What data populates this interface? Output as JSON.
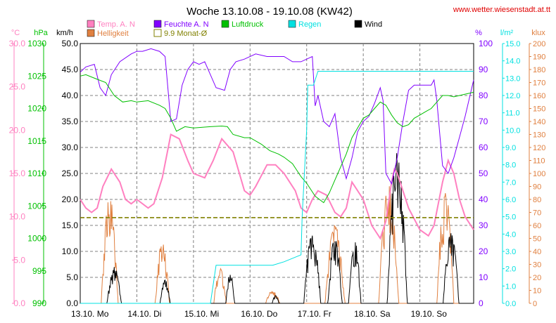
{
  "chart_data": {
    "type": "line",
    "title": "Woche 13.10.08 - 19.10.08 (KW42)",
    "watermark": "www.wetter.wiesenstadt.at.tt",
    "x_tick_labels": [
      "13.10. Mo",
      "14.10. Di",
      "15.10. Mi",
      "16.10. Do",
      "17.10. Fr",
      "18.10. Sa",
      "19.10. So"
    ],
    "x_range_days": [
      0,
      6.95
    ],
    "grid": true,
    "legend_placement": "top",
    "axes": [
      {
        "id": "temp",
        "label": "°C",
        "side": "left",
        "min": 0,
        "max": 30,
        "ticks": [
          "0.0",
          "5.0",
          "10.0",
          "15.0",
          "20.0",
          "25.0",
          "30.0"
        ],
        "color": "#ff80c0"
      },
      {
        "id": "press",
        "label": "hPa",
        "side": "left",
        "min": 990,
        "max": 1030,
        "ticks": [
          "990",
          "995",
          "1000",
          "1005",
          "1010",
          "1015",
          "1020",
          "1025",
          "1030"
        ],
        "color": "#00c000"
      },
      {
        "id": "wind",
        "label": "km/h",
        "side": "left",
        "min": 0,
        "max": 50,
        "ticks": [
          "0.0",
          "5.0",
          "10.0",
          "15.0",
          "20.0",
          "25.0",
          "30.0",
          "35.0",
          "40.0",
          "45.0",
          "50.0"
        ],
        "color": "#000000"
      },
      {
        "id": "hum",
        "label": "%",
        "side": "right",
        "min": 0,
        "max": 100,
        "ticks": [
          "0",
          "10",
          "20",
          "30",
          "40",
          "50",
          "60",
          "70",
          "80",
          "90",
          "100"
        ],
        "color": "#8000ff"
      },
      {
        "id": "rain",
        "label": "l/m²",
        "side": "right",
        "min": 0,
        "max": 15,
        "ticks": [
          "0.0",
          "1.0",
          "2.0",
          "3.0",
          "4.0",
          "5.0",
          "6.0",
          "7.0",
          "8.0",
          "9.0",
          "10.0",
          "11.0",
          "12.0",
          "13.0",
          "14.0",
          "15.0"
        ],
        "color": "#00e0e0"
      },
      {
        "id": "lux",
        "label": "klux",
        "side": "right",
        "min": 0,
        "max": 200,
        "ticks": [
          "0",
          "10",
          "20",
          "30",
          "40",
          "50",
          "60",
          "70",
          "80",
          "90",
          "100",
          "110",
          "120",
          "130",
          "140",
          "150",
          "160",
          "170",
          "180",
          "190",
          "200"
        ],
        "color": "#e08040"
      }
    ],
    "legend": [
      {
        "name": "Temp. A. N",
        "color": "#ff80c0",
        "style": "box"
      },
      {
        "name": "Feuchte A. N",
        "color": "#8000ff",
        "style": "box"
      },
      {
        "name": "Luftdruck",
        "color": "#00c000",
        "style": "box"
      },
      {
        "name": "Regen",
        "color": "#00e0e0",
        "style": "box"
      },
      {
        "name": "Wind",
        "color": "#000000",
        "style": "box"
      },
      {
        "name": "Helligkeit",
        "color": "#e08040",
        "style": "box"
      },
      {
        "name": "9.9 Monat-Ø",
        "color": "#808000",
        "style": "outline"
      }
    ],
    "series": [
      {
        "name": "Temp. A. N",
        "axis": "temp",
        "color": "#ff80c0",
        "width": 2,
        "x": [
          0,
          0.1,
          0.2,
          0.3,
          0.4,
          0.55,
          0.7,
          0.8,
          0.9,
          1.0,
          1.2,
          1.3,
          1.45,
          1.6,
          1.75,
          1.9,
          2.0,
          2.2,
          2.35,
          2.5,
          2.7,
          2.9,
          3.0,
          3.1,
          3.3,
          3.45,
          3.6,
          3.8,
          3.9,
          4.0,
          4.1,
          4.2,
          4.35,
          4.5,
          4.6,
          4.7,
          4.8,
          5.0,
          5.15,
          5.3,
          5.4,
          5.5,
          5.55,
          5.6,
          5.7,
          5.8,
          6.0,
          6.15,
          6.25,
          6.4,
          6.5,
          6.6,
          6.7,
          6.8,
          6.95
        ],
        "y": [
          12.0,
          11.0,
          10.5,
          11.0,
          13.5,
          15.5,
          14.0,
          12.0,
          11.5,
          12.0,
          11.0,
          11.5,
          14.5,
          19.5,
          19.0,
          16.5,
          15.0,
          14.5,
          16.5,
          19.0,
          17.5,
          13.0,
          12.5,
          13.5,
          16.0,
          16.0,
          15.0,
          13.0,
          11.0,
          10.5,
          12.0,
          13.0,
          12.5,
          10.5,
          10.0,
          11.0,
          14.0,
          12.0,
          9.0,
          7.5,
          9.5,
          14.0,
          15.5,
          15.0,
          13.0,
          11.0,
          8.5,
          7.8,
          9.0,
          14.0,
          16.5,
          15.0,
          12.0,
          10.0,
          8.5
        ]
      },
      {
        "name": "Feuchte A. N",
        "axis": "hum",
        "color": "#8000ff",
        "width": 1,
        "x": [
          0,
          0.1,
          0.25,
          0.35,
          0.45,
          0.55,
          0.7,
          0.9,
          1.0,
          1.1,
          1.25,
          1.4,
          1.5,
          1.6,
          1.7,
          1.8,
          1.9,
          2.0,
          2.1,
          2.2,
          2.4,
          2.55,
          2.65,
          2.75,
          2.9,
          3.1,
          3.3,
          3.5,
          3.6,
          3.75,
          3.9,
          4.0,
          4.1,
          4.15,
          4.2,
          4.3,
          4.4,
          4.5,
          4.6,
          4.7,
          4.8,
          4.9,
          5.0,
          5.1,
          5.2,
          5.3,
          5.35,
          5.4,
          5.5,
          5.6,
          5.7,
          5.8,
          5.9,
          6.0,
          6.1,
          6.2,
          6.25,
          6.3,
          6.4,
          6.5,
          6.6,
          6.7,
          6.8,
          6.95
        ],
        "y": [
          89,
          91,
          92,
          83,
          80,
          88,
          93,
          96,
          97,
          97,
          98,
          97,
          95,
          70,
          71,
          84,
          90,
          93,
          92,
          93,
          83,
          82,
          90,
          93,
          94,
          96,
          95,
          95,
          95,
          93,
          93,
          94,
          95,
          76,
          80,
          70,
          68,
          73,
          56,
          48,
          56,
          66,
          70,
          72,
          77,
          83,
          78,
          50,
          46,
          56,
          70,
          82,
          84,
          84,
          84,
          84,
          86,
          78,
          53,
          50,
          56,
          64,
          72,
          86
        ]
      },
      {
        "name": "Luftdruck",
        "axis": "press",
        "color": "#00c000",
        "width": 1,
        "x": [
          0,
          0.1,
          0.3,
          0.45,
          0.6,
          0.75,
          0.9,
          1.0,
          1.2,
          1.4,
          1.5,
          1.6,
          1.7,
          1.85,
          2.0,
          2.3,
          2.5,
          2.6,
          2.7,
          2.9,
          3.0,
          3.2,
          3.35,
          3.5,
          3.6,
          3.75,
          3.9,
          4.0,
          4.15,
          4.3,
          4.4,
          4.5,
          4.6,
          4.7,
          4.8,
          4.9,
          5.0,
          5.1,
          5.2,
          5.3,
          5.4,
          5.5,
          5.6,
          5.7,
          5.8,
          5.9,
          6.0,
          6.1,
          6.2,
          6.3,
          6.4,
          6.5,
          6.6,
          6.7,
          6.8,
          6.95
        ],
        "y": [
          1025.0,
          1025.2,
          1024.5,
          1024.0,
          1022.0,
          1021.0,
          1021.2,
          1021.0,
          1021.2,
          1020.5,
          1020.0,
          1018.5,
          1016.5,
          1017.2,
          1017.0,
          1017.2,
          1017.3,
          1017.2,
          1016.0,
          1015.5,
          1015.5,
          1014.5,
          1013.5,
          1013.0,
          1012.5,
          1011.5,
          1009.5,
          1008.5,
          1006.5,
          1005.5,
          1007.0,
          1009.0,
          1011.0,
          1013.0,
          1015.5,
          1017.0,
          1018.5,
          1019.0,
          1020.0,
          1021.0,
          1020.5,
          1019.0,
          1017.8,
          1017.2,
          1017.5,
          1018.5,
          1019.0,
          1019.5,
          1020.0,
          1021.0,
          1022.0,
          1022.0,
          1021.8,
          1022.0,
          1022.2,
          1022.5
        ]
      },
      {
        "name": "Regen",
        "axis": "rain",
        "color": "#00e0e0",
        "width": 1,
        "x": [
          0,
          2.3,
          2.4,
          3.4,
          3.6,
          3.9,
          3.92,
          4.0,
          4.02,
          4.1,
          4.12,
          4.2,
          4.22,
          6.95
        ],
        "y": [
          0,
          0,
          2.2,
          2.2,
          2.4,
          2.8,
          5.0,
          10.0,
          12.6,
          12.6,
          12.6,
          13.4,
          13.4,
          13.4
        ]
      },
      {
        "name": "9.9 Monat-Ø",
        "axis": "temp",
        "color": "#808000",
        "width": 1.6,
        "dash": "6,3",
        "x": [
          0,
          6.95
        ],
        "y": [
          9.9,
          9.9
        ]
      }
    ],
    "wind_bursts": [
      {
        "center": 0.6,
        "width": 0.25,
        "peak": 7.0
      },
      {
        "center": 1.5,
        "width": 0.18,
        "peak": 4.5
      },
      {
        "center": 2.65,
        "width": 0.15,
        "peak": 6.0
      },
      {
        "center": 3.45,
        "width": 0.12,
        "peak": 1.5
      },
      {
        "center": 4.1,
        "width": 0.3,
        "peak": 13.5
      },
      {
        "center": 4.5,
        "width": 0.25,
        "peak": 13.0
      },
      {
        "center": 4.85,
        "width": 0.22,
        "peak": 12.0
      },
      {
        "center": 5.6,
        "width": 0.35,
        "peak": 29.0
      },
      {
        "center": 6.55,
        "width": 0.28,
        "peak": 13.5
      }
    ],
    "light_bursts": [
      {
        "center": 0.52,
        "width": 0.3,
        "peak": 82
      },
      {
        "center": 1.45,
        "width": 0.25,
        "peak": 47
      },
      {
        "center": 2.47,
        "width": 0.22,
        "peak": 27
      },
      {
        "center": 3.4,
        "width": 0.25,
        "peak": 10
      },
      {
        "center": 4.5,
        "width": 0.35,
        "peak": 60
      },
      {
        "center": 5.45,
        "width": 0.35,
        "peak": 92
      },
      {
        "center": 6.45,
        "width": 0.3,
        "peak": 85
      }
    ]
  }
}
